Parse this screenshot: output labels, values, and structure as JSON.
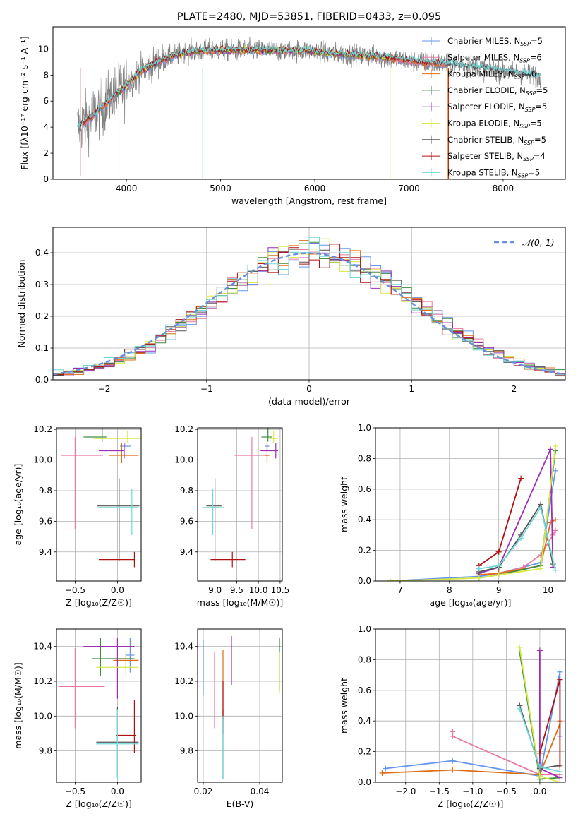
{
  "colors": {
    "Chabrier MILES": "#6495ed",
    "Salpeter MILES": "#e87aa4",
    "Kroupa MILES": "#e06c15",
    "Chabrier ELODIE": "#3d8c3d",
    "Salpeter ELODIE": "#9b30b5",
    "Kroupa ELODIE": "#d8e84a",
    "Chabrier STELIB": "#555555",
    "Salpeter STELIB": "#b01010",
    "Kroupa STELIB": "#70d8d8"
  },
  "chart_data": [
    {
      "id": "spectrum",
      "type": "line",
      "title": "PLATE=2480, MJD=53851, FIBERID=0433, z=0.095",
      "xlabel": "wavelength [Angstrom, rest frame]",
      "ylabel": "Flux [fλ10⁻¹⁷ erg cm⁻² s⁻¹ A⁻¹]",
      "xlim": [
        3220,
        8660
      ],
      "ylim": [
        0,
        11.7
      ],
      "xticks": [
        4000,
        5000,
        6000,
        7000,
        8000
      ],
      "yticks": [
        0,
        2,
        4,
        6,
        8,
        10
      ],
      "legend_position": "right",
      "legend": [
        {
          "name": "Chabrier MILES, N",
          "sub": "SSP",
          "suffix": "=5"
        },
        {
          "name": "Salpeter MILES, N",
          "sub": "SSP",
          "suffix": "=6"
        },
        {
          "name": "Kroupa MILES, N",
          "sub": "SSP",
          "suffix": "=6"
        },
        {
          "name": "Chabrier ELODIE, N",
          "sub": "SSP",
          "suffix": "=5"
        },
        {
          "name": "Salpeter ELODIE, N",
          "sub": "SSP",
          "suffix": "=5"
        },
        {
          "name": "Kroupa ELODIE, N",
          "sub": "SSP",
          "suffix": "=5"
        },
        {
          "name": "Chabrier STELIB, N",
          "sub": "SSP",
          "suffix": "=5"
        },
        {
          "name": "Salpeter STELIB, N",
          "sub": "SSP",
          "suffix": "=4"
        },
        {
          "name": "Kroupa STELIB, N",
          "sub": "SSP",
          "suffix": "=5"
        }
      ],
      "model_continuum": {
        "x": [
          3480,
          3600,
          3750,
          3900,
          4000,
          4150,
          4300,
          4500,
          4700,
          4900,
          5100,
          5300,
          5500,
          5700,
          5900,
          6100,
          6300,
          6500,
          6700,
          6900,
          7100,
          7300,
          7500,
          7700,
          7900,
          8100,
          8300,
          8400
        ],
        "y": [
          4.0,
          4.6,
          5.6,
          6.6,
          7.2,
          8.3,
          8.9,
          9.5,
          9.8,
          9.9,
          9.9,
          9.9,
          9.9,
          9.85,
          9.9,
          9.7,
          9.6,
          9.5,
          9.4,
          9.2,
          9.0,
          8.9,
          8.8,
          8.6,
          8.4,
          8.2,
          8.0,
          7.9
        ]
      }
    },
    {
      "id": "residuals",
      "type": "histogram",
      "xlabel": "(data-model)/error",
      "ylabel": "Normed distribution",
      "xlim": [
        -2.5,
        2.5
      ],
      "ylim": [
        0,
        0.48
      ],
      "xticks": [
        -2,
        -1,
        0,
        1,
        2
      ],
      "yticks": [
        0.0,
        0.1,
        0.2,
        0.3,
        0.4
      ],
      "legend_label": "𝒩(0, 1)",
      "bin_width": 0.1,
      "reference_curve": "normal(0,1)"
    },
    {
      "id": "age-vs-Z",
      "type": "errorbar",
      "xlabel": "Z [log₁₀(Z/Z☉)]",
      "ylabel": "age  [log₁₀(age/yr)]",
      "xlim": [
        -0.72,
        0.28
      ],
      "ylim": [
        9.21,
        10.21
      ],
      "xticks": [
        -0.5,
        0.0
      ],
      "yticks": [
        9.4,
        9.6,
        9.8,
        10.0,
        10.2
      ],
      "points": [
        {
          "model": "Chabrier MILES",
          "x": 0.1,
          "xerr": [
            0.07,
            0.06
          ],
          "y": 10.09,
          "yerr": [
            0.02,
            0.02
          ]
        },
        {
          "model": "Salpeter MILES",
          "x": -0.5,
          "xerr": [
            0.17,
            0.33
          ],
          "y": 10.03,
          "yerr": [
            0.48,
            0.12
          ]
        },
        {
          "model": "Kroupa MILES",
          "x": 0.05,
          "xerr": [
            0.15,
            0.2
          ],
          "y": 10.03,
          "yerr": [
            0.05,
            0.08
          ]
        },
        {
          "model": "Chabrier ELODIE",
          "x": -0.18,
          "xerr": [
            0.22,
            0.05
          ],
          "y": 10.15,
          "yerr": [
            0.03,
            0.06
          ]
        },
        {
          "model": "Salpeter ELODIE",
          "x": 0.08,
          "xerr": [
            0.3,
            0.0
          ],
          "y": 10.06,
          "yerr": [
            0.05,
            0.05
          ]
        },
        {
          "model": "Kroupa ELODIE",
          "x": 0.12,
          "xerr": [
            0.4,
            0.16
          ],
          "y": 10.14,
          "yerr": [
            0.03,
            0.05
          ]
        },
        {
          "model": "Chabrier STELIB",
          "x": 0.02,
          "xerr": [
            0.26,
            0.24
          ],
          "y": 9.7,
          "yerr": [
            0.36,
            0.18
          ]
        },
        {
          "model": "Salpeter STELIB",
          "x": 0.2,
          "xerr": [
            0.42,
            0.0
          ],
          "y": 9.35,
          "yerr": [
            0.05,
            0.05
          ]
        },
        {
          "model": "Kroupa STELIB",
          "x": 0.17,
          "xerr": [
            0.4,
            0.07
          ],
          "y": 9.69,
          "yerr": [
            0.18,
            0.12
          ]
        }
      ]
    },
    {
      "id": "age-vs-mass",
      "type": "errorbar",
      "xlabel": "mass [log₁₀(M/M☉)]",
      "ylabel": "",
      "xlim": [
        8.6,
        10.55
      ],
      "ylim": [
        9.21,
        10.21
      ],
      "xticks": [
        9.0,
        9.5,
        10.0,
        10.5
      ],
      "yticks": [
        9.4,
        9.6,
        9.8,
        10.0,
        10.2
      ],
      "points": [
        {
          "model": "Chabrier MILES",
          "x": 10.2,
          "xerr": [
            0.05,
            0.05
          ],
          "y": 10.09,
          "yerr": [
            0.02,
            0.02
          ]
        },
        {
          "model": "Salpeter MILES",
          "x": 9.85,
          "xerr": [
            0.4,
            0.4
          ],
          "y": 10.03,
          "yerr": [
            0.48,
            0.12
          ]
        },
        {
          "model": "Kroupa MILES",
          "x": 10.2,
          "xerr": [
            0.06,
            0.05
          ],
          "y": 10.03,
          "yerr": [
            0.05,
            0.08
          ]
        },
        {
          "model": "Chabrier ELODIE",
          "x": 10.22,
          "xerr": [
            0.15,
            0.1
          ],
          "y": 10.15,
          "yerr": [
            0.03,
            0.06
          ]
        },
        {
          "model": "Salpeter ELODIE",
          "x": 10.4,
          "xerr": [
            0.35,
            0.05
          ],
          "y": 10.06,
          "yerr": [
            0.05,
            0.05
          ]
        },
        {
          "model": "Kroupa ELODIE",
          "x": 10.35,
          "xerr": [
            0.1,
            0.1
          ],
          "y": 10.14,
          "yerr": [
            0.03,
            0.05
          ]
        },
        {
          "model": "Chabrier STELIB",
          "x": 9.0,
          "xerr": [
            0.2,
            0.15
          ],
          "y": 9.7,
          "yerr": [
            0.36,
            0.18
          ]
        },
        {
          "model": "Salpeter STELIB",
          "x": 9.4,
          "xerr": [
            0.5,
            0.3
          ],
          "y": 9.35,
          "yerr": [
            0.05,
            0.05
          ]
        },
        {
          "model": "Kroupa STELIB",
          "x": 8.95,
          "xerr": [
            0.25,
            0.25
          ],
          "y": 9.69,
          "yerr": [
            0.18,
            0.12
          ]
        }
      ]
    },
    {
      "id": "massweight-vs-age",
      "type": "line",
      "xlabel": "age  [log₁₀(age/yr)]",
      "ylabel": "mass weight",
      "xlim": [
        6.5,
        10.35
      ],
      "ylim": [
        0,
        1.0
      ],
      "xticks": [
        7,
        8,
        9,
        10
      ],
      "yticks": [
        0.0,
        0.2,
        0.4,
        0.6,
        0.8,
        1.0
      ],
      "series": [
        {
          "model": "Chabrier MILES",
          "x": [
            6.8,
            8.6,
            9.0,
            9.85,
            10.15
          ],
          "y": [
            0.0,
            0.03,
            0.05,
            0.12,
            0.72
          ]
        },
        {
          "model": "Salpeter MILES",
          "x": [
            8.6,
            9.0,
            9.5,
            9.85,
            10.1,
            10.15
          ],
          "y": [
            0.04,
            0.05,
            0.09,
            0.17,
            0.3,
            0.33
          ]
        },
        {
          "model": "Kroupa MILES",
          "x": [
            8.6,
            9.0,
            9.85,
            10.05,
            10.15
          ],
          "y": [
            0.04,
            0.05,
            0.1,
            0.38,
            0.4
          ]
        },
        {
          "model": "Chabrier ELODIE",
          "x": [
            8.6,
            9.0,
            9.85,
            10.15
          ],
          "y": [
            0.02,
            0.04,
            0.1,
            0.85
          ]
        },
        {
          "model": "Salpeter ELODIE",
          "x": [
            8.6,
            9.0,
            10.05,
            10.1
          ],
          "y": [
            0.05,
            0.09,
            0.86,
            0.09
          ]
        },
        {
          "model": "Kroupa ELODIE",
          "x": [
            6.8,
            8.6,
            9.0,
            9.85,
            10.15
          ],
          "y": [
            0.0,
            0.02,
            0.04,
            0.08,
            0.88
          ]
        },
        {
          "model": "Chabrier STELIB",
          "x": [
            8.6,
            9.0,
            9.45,
            9.85,
            10.1
          ],
          "y": [
            0.06,
            0.09,
            0.3,
            0.5,
            0.11
          ]
        },
        {
          "model": "Salpeter STELIB",
          "x": [
            8.6,
            9.0,
            9.45
          ],
          "y": [
            0.1,
            0.19,
            0.67
          ]
        },
        {
          "model": "Kroupa STELIB",
          "x": [
            8.6,
            9.0,
            9.45,
            9.85,
            10.15
          ],
          "y": [
            0.08,
            0.1,
            0.28,
            0.48,
            0.07
          ]
        }
      ]
    },
    {
      "id": "mass-vs-Z",
      "type": "errorbar",
      "xlabel": "Z [log₁₀(Z/Z☉)]",
      "ylabel": "mass [log₁₀(M/M☉)]",
      "xlim": [
        -0.72,
        0.28
      ],
      "ylim": [
        9.62,
        10.5
      ],
      "xticks": [
        -0.5,
        0.0
      ],
      "yticks": [
        9.8,
        10.0,
        10.2,
        10.4
      ],
      "points": [
        {
          "model": "Chabrier MILES",
          "x": 0.15,
          "xerr": [
            0.05,
            0.05
          ],
          "y": 10.35,
          "yerr": [
            0.1,
            0.1
          ]
        },
        {
          "model": "Salpeter MILES",
          "x": -0.5,
          "xerr": [
            0.2,
            0.35
          ],
          "y": 10.17,
          "yerr": [
            0.24,
            0.22
          ]
        },
        {
          "model": "Kroupa MILES",
          "x": 0.1,
          "xerr": [
            0.15,
            0.15
          ],
          "y": 10.32,
          "yerr": [
            0.05,
            0.05
          ]
        },
        {
          "model": "Chabrier ELODIE",
          "x": -0.2,
          "xerr": [
            0.1,
            0.4
          ],
          "y": 10.33,
          "yerr": [
            0.1,
            0.12
          ]
        },
        {
          "model": "Salpeter ELODIE",
          "x": 0.0,
          "xerr": [
            0.4,
            0.2
          ],
          "y": 10.4,
          "yerr": [
            0.3,
            0.05
          ]
        },
        {
          "model": "Kroupa ELODIE",
          "x": 0.1,
          "xerr": [
            0.35,
            0.15
          ],
          "y": 10.28,
          "yerr": [
            0.05,
            0.08
          ]
        },
        {
          "model": "Chabrier STELIB",
          "x": 0.0,
          "xerr": [
            0.25,
            0.25
          ],
          "y": 9.85,
          "yerr": [
            0.2,
            0.2
          ]
        },
        {
          "model": "Salpeter STELIB",
          "x": 0.2,
          "xerr": [
            0.22,
            0.02
          ],
          "y": 9.89,
          "yerr": [
            0.1,
            0.2
          ]
        },
        {
          "model": "Kroupa STELIB",
          "x": 0.0,
          "xerr": [
            0.25,
            0.25
          ],
          "y": 9.84,
          "yerr": [
            0.2,
            0.2
          ]
        }
      ]
    },
    {
      "id": "mass-vs-EBV",
      "type": "errorbar",
      "xlabel": "E(B-V)",
      "ylabel": "",
      "xlim": [
        0.018,
        0.048
      ],
      "ylim": [
        9.62,
        10.5
      ],
      "xticks": [
        0.02,
        0.04
      ],
      "yticks": [
        9.8,
        10.0,
        10.2,
        10.4
      ],
      "points": [
        {
          "model": "Chabrier MILES",
          "x": 0.02,
          "y": 10.28,
          "yerr": [
            0.16,
            0.16
          ]
        },
        {
          "model": "Salpeter MILES",
          "x": 0.024,
          "y": 10.15,
          "yerr": [
            0.22,
            0.22
          ]
        },
        {
          "model": "Kroupa MILES",
          "x": 0.027,
          "y": 10.18,
          "yerr": [
            0.2,
            0.2
          ]
        },
        {
          "model": "Chabrier ELODIE",
          "x": 0.047,
          "y": 10.3,
          "yerr": [
            0.15,
            0.15
          ]
        },
        {
          "model": "Salpeter ELODIE",
          "x": 0.03,
          "y": 10.32,
          "yerr": [
            0.14,
            0.14
          ]
        },
        {
          "model": "Kroupa ELODIE",
          "x": 0.047,
          "y": 10.25,
          "yerr": [
            0.12,
            0.12
          ]
        },
        {
          "model": "Chabrier STELIB",
          "x": 0.027,
          "y": 9.84,
          "yerr": [
            0.2,
            0.2
          ]
        },
        {
          "model": "Salpeter STELIB",
          "x": 0.027,
          "y": 10.0,
          "yerr": [
            0.1,
            0.2
          ]
        },
        {
          "model": "Kroupa STELIB",
          "x": 0.027,
          "y": 9.82,
          "yerr": [
            0.18,
            0.18
          ]
        }
      ]
    },
    {
      "id": "massweight-vs-Z",
      "type": "line",
      "xlabel": "Z [log₁₀(Z/Z☉)]",
      "ylabel": "mass weight",
      "xlim": [
        -2.45,
        0.38
      ],
      "ylim": [
        0,
        1.0
      ],
      "xticks": [
        -2.0,
        -1.5,
        -1.0,
        -0.5,
        0.0
      ],
      "yticks": [
        0.0,
        0.2,
        0.4,
        0.6,
        0.8,
        1.0
      ],
      "series": [
        {
          "model": "Chabrier MILES",
          "x": [
            -2.3,
            -1.3,
            0.0,
            0.3,
            0.3
          ],
          "y": [
            0.09,
            0.14,
            0.04,
            0.72,
            0.3
          ]
        },
        {
          "model": "Salpeter MILES",
          "x": [
            -1.3,
            -1.3,
            0.0,
            0.3
          ],
          "y": [
            0.33,
            0.3,
            0.05,
            0.05
          ]
        },
        {
          "model": "Kroupa MILES",
          "x": [
            -2.35,
            -1.3,
            0.0,
            0.3,
            0.3
          ],
          "y": [
            0.06,
            0.08,
            0.05,
            0.38,
            0.4
          ]
        },
        {
          "model": "Chabrier ELODIE",
          "x": [
            -0.3,
            0.0,
            0.3
          ],
          "y": [
            0.85,
            0.02,
            0.03
          ]
        },
        {
          "model": "Salpeter ELODIE",
          "x": [
            0.0,
            0.0,
            0.3
          ],
          "y": [
            0.86,
            0.09,
            0.03
          ]
        },
        {
          "model": "Kroupa ELODIE",
          "x": [
            -0.3,
            0.0,
            0.3
          ],
          "y": [
            0.88,
            0.04,
            0.0
          ]
        },
        {
          "model": "Chabrier STELIB",
          "x": [
            -0.3,
            0.0,
            0.3
          ],
          "y": [
            0.5,
            0.09,
            0.11
          ]
        },
        {
          "model": "Salpeter STELIB",
          "x": [
            0.0,
            0.3,
            0.3
          ],
          "y": [
            0.19,
            0.67,
            0.1
          ]
        },
        {
          "model": "Kroupa STELIB",
          "x": [
            -0.3,
            0.0,
            0.3
          ],
          "y": [
            0.48,
            0.1,
            0.07
          ]
        }
      ]
    }
  ]
}
